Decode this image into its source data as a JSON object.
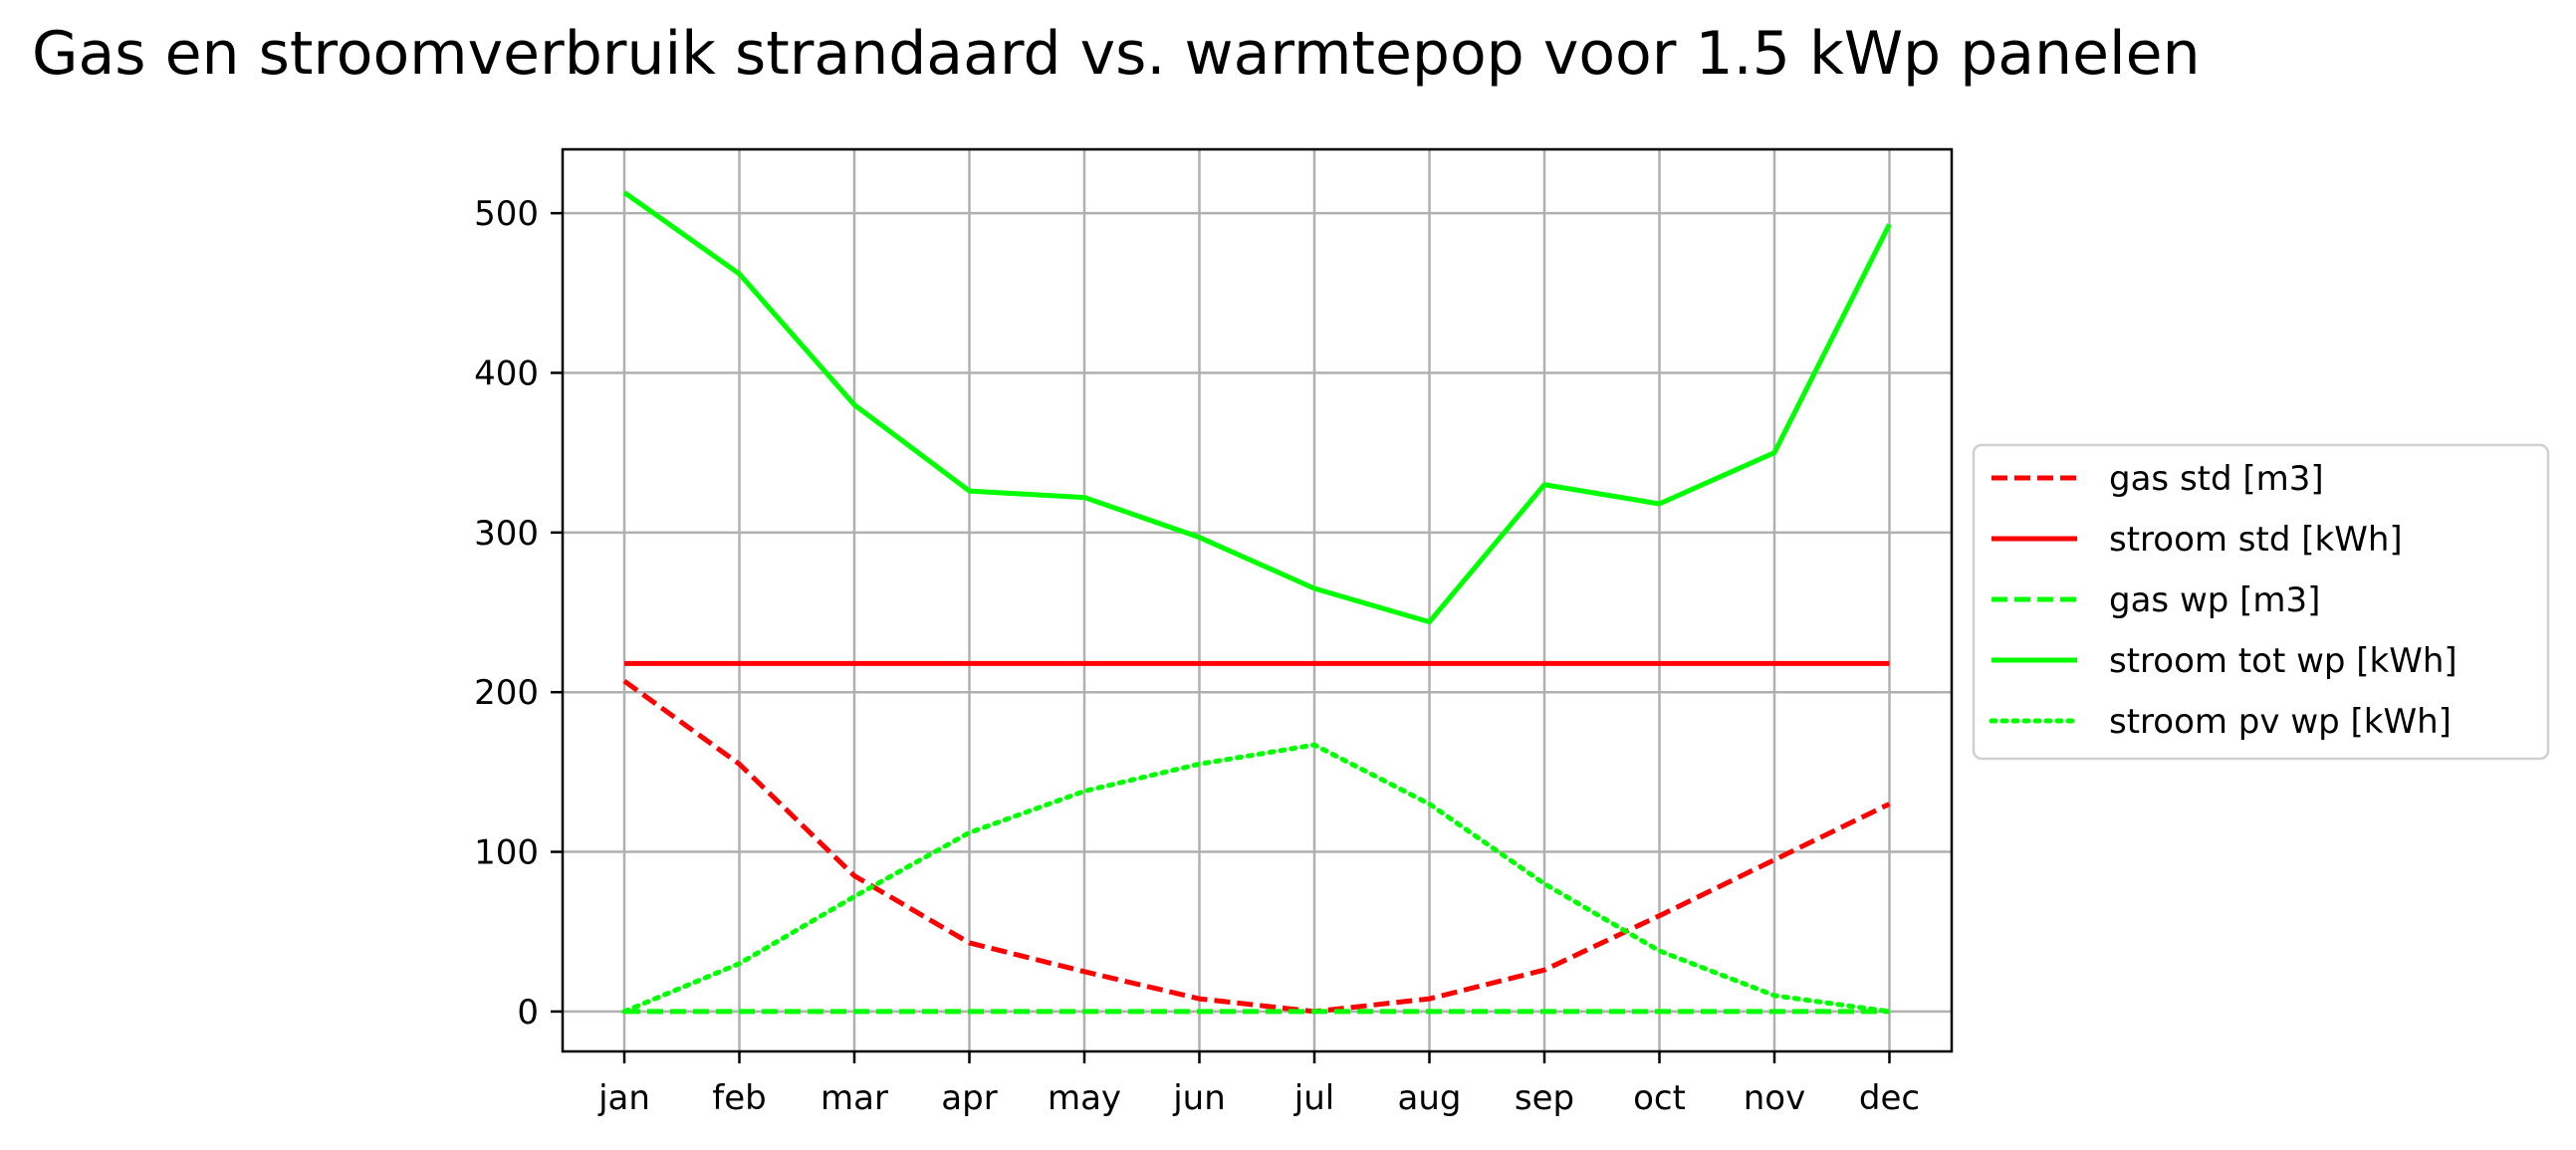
{
  "chart_data": {
    "type": "line",
    "title": "Gas en stroomverbruik strandaard vs. warmtepop voor 1.5 kWp panelen",
    "xlabel": "",
    "ylabel": "",
    "categories": [
      "jan",
      "feb",
      "mar",
      "apr",
      "may",
      "jun",
      "jul",
      "aug",
      "sep",
      "oct",
      "nov",
      "dec"
    ],
    "ylim": [
      -25,
      540
    ],
    "yticks": [
      0,
      100,
      200,
      300,
      400,
      500
    ],
    "grid": true,
    "legend_position": "center-right, outside plot",
    "series": [
      {
        "name": "gas std [m3]",
        "color": "#ff0000",
        "style": "dashed",
        "values": [
          207,
          155,
          85,
          43,
          25,
          8,
          0,
          8,
          26,
          60,
          95,
          130
        ]
      },
      {
        "name": "stroom std [kWh]",
        "color": "#ff0000",
        "style": "solid",
        "values": [
          218,
          218,
          218,
          218,
          218,
          218,
          218,
          218,
          218,
          218,
          218,
          218
        ]
      },
      {
        "name": "gas wp [m3]",
        "color": "#00ff00",
        "style": "dashed",
        "values": [
          0,
          0,
          0,
          0,
          0,
          0,
          0,
          0,
          0,
          0,
          0,
          0
        ]
      },
      {
        "name": "stroom tot wp [kWh]",
        "color": "#00ff00",
        "style": "solid",
        "values": [
          513,
          462,
          380,
          326,
          322,
          297,
          265,
          244,
          330,
          318,
          350,
          493
        ]
      },
      {
        "name": "stroom pv wp [kWh]",
        "color": "#00ff00",
        "style": "dotted",
        "values": [
          0,
          30,
          72,
          112,
          138,
          155,
          167,
          130,
          80,
          38,
          10,
          0
        ]
      }
    ]
  }
}
